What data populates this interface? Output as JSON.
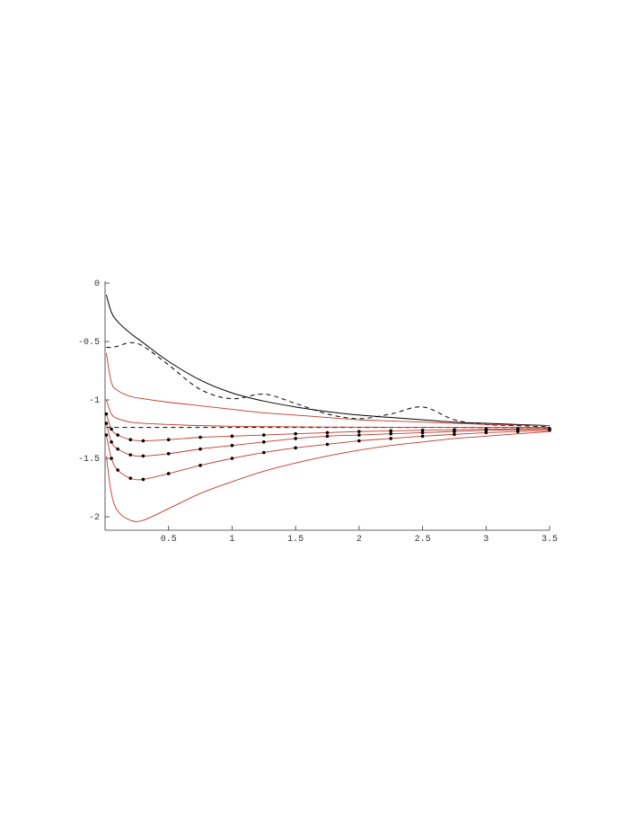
{
  "chart_data": {
    "type": "line",
    "x": [
      0.01,
      0.05,
      0.1,
      0.2,
      0.3,
      0.5,
      0.75,
      1,
      1.25,
      1.5,
      1.75,
      2,
      2.25,
      2.5,
      2.75,
      3,
      3.25,
      3.5
    ],
    "series": [
      {
        "color": "#000000",
        "dash": false,
        "markers": false,
        "values": [
          -0.1,
          -0.25,
          -0.33,
          -0.43,
          -0.51,
          -0.67,
          -0.83,
          -0.94,
          -1.01,
          -1.06,
          -1.1,
          -1.13,
          -1.15,
          -1.17,
          -1.19,
          -1.2,
          -1.21,
          -1.22
        ]
      },
      {
        "color": "#000000",
        "dash": true,
        "markers": false,
        "values": [
          -0.55,
          -0.55,
          -0.54,
          -0.51,
          -0.54,
          -0.7,
          -0.91,
          -0.99,
          -0.95,
          -1.03,
          -1.12,
          -1.16,
          -1.12,
          -1.06,
          -1.17,
          -1.21,
          -1.22,
          -1.23
        ]
      },
      {
        "color": "#000000",
        "dash": true,
        "markers": false,
        "values": [
          -1.235,
          -1.235,
          -1.235,
          -1.235,
          -1.235,
          -1.235,
          -1.235,
          -1.235,
          -1.235,
          -1.235,
          -1.235,
          -1.235,
          -1.235,
          -1.235,
          -1.235,
          -1.235,
          -1.235,
          -1.235
        ]
      },
      {
        "color": "#c0392b",
        "dash": false,
        "markers": false,
        "values": [
          -0.6,
          -0.85,
          -0.92,
          -0.97,
          -0.99,
          -1.02,
          -1.05,
          -1.08,
          -1.11,
          -1.13,
          -1.15,
          -1.17,
          -1.18,
          -1.19,
          -1.2,
          -1.21,
          -1.215,
          -1.22
        ]
      },
      {
        "color": "#c0392b",
        "dash": false,
        "markers": false,
        "values": [
          -1.0,
          -1.12,
          -1.16,
          -1.19,
          -1.2,
          -1.21,
          -1.22,
          -1.225,
          -1.228,
          -1.23,
          -1.232,
          -1.233,
          -1.234,
          -1.234,
          -1.235,
          -1.235,
          -1.235,
          -1.235
        ]
      },
      {
        "color": "#c0392b",
        "dash": false,
        "markers": true,
        "values": [
          -1.12,
          -1.25,
          -1.3,
          -1.34,
          -1.35,
          -1.34,
          -1.32,
          -1.31,
          -1.3,
          -1.29,
          -1.28,
          -1.27,
          -1.265,
          -1.26,
          -1.255,
          -1.25,
          -1.247,
          -1.245
        ]
      },
      {
        "color": "#c0392b",
        "dash": false,
        "markers": true,
        "values": [
          -1.2,
          -1.36,
          -1.42,
          -1.47,
          -1.48,
          -1.46,
          -1.42,
          -1.39,
          -1.36,
          -1.33,
          -1.31,
          -1.3,
          -1.29,
          -1.28,
          -1.27,
          -1.26,
          -1.255,
          -1.25
        ]
      },
      {
        "color": "#c0392b",
        "dash": false,
        "markers": true,
        "values": [
          -1.3,
          -1.5,
          -1.6,
          -1.67,
          -1.68,
          -1.63,
          -1.56,
          -1.5,
          -1.45,
          -1.41,
          -1.38,
          -1.35,
          -1.33,
          -1.31,
          -1.295,
          -1.28,
          -1.27,
          -1.26
        ]
      },
      {
        "color": "#c0392b",
        "dash": false,
        "markers": false,
        "values": [
          -1.48,
          -1.8,
          -1.95,
          -2.03,
          -2.03,
          -1.93,
          -1.8,
          -1.7,
          -1.61,
          -1.54,
          -1.48,
          -1.43,
          -1.39,
          -1.36,
          -1.33,
          -1.31,
          -1.29,
          -1.27
        ]
      }
    ],
    "xlim": [
      0,
      3.5
    ],
    "ylim": [
      -2.115,
      0
    ],
    "xticks": [
      0.5,
      1,
      1.5,
      2,
      2.5,
      3,
      3.5
    ],
    "yticks": [
      0,
      -0.5,
      -1,
      -1.5,
      -2
    ]
  }
}
